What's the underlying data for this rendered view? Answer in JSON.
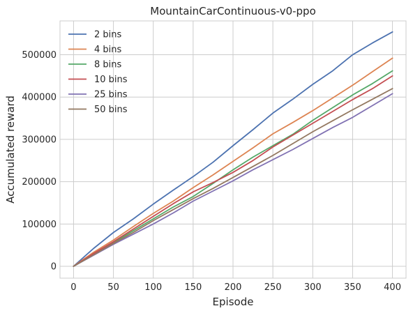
{
  "chart_data": {
    "type": "line",
    "title": "MountainCarContinuous-v0-ppo",
    "xlabel": "Episode",
    "ylabel": "Accumulated reward",
    "xlim": [
      -17,
      417
    ],
    "ylim": [
      -28000,
      580000
    ],
    "xticks": [
      0,
      50,
      100,
      150,
      200,
      250,
      300,
      350,
      400
    ],
    "yticks": [
      0,
      100000,
      200000,
      300000,
      400000,
      500000
    ],
    "grid": true,
    "legend_position": "top-left",
    "series": [
      {
        "name": "2 bins",
        "color": "#4c72b0",
        "x": [
          0,
          25,
          50,
          75,
          100,
          125,
          150,
          175,
          200,
          225,
          250,
          275,
          300,
          325,
          350,
          375,
          400
        ],
        "y": [
          0,
          42000,
          80000,
          112000,
          147000,
          180000,
          212000,
          246000,
          285000,
          323000,
          362000,
          395000,
          430000,
          462000,
          500000,
          528000,
          554000
        ]
      },
      {
        "name": "4 bins",
        "color": "#dd8452",
        "x": [
          0,
          25,
          50,
          75,
          100,
          125,
          150,
          175,
          200,
          225,
          250,
          275,
          300,
          325,
          350,
          375,
          400
        ],
        "y": [
          0,
          33000,
          62000,
          94000,
          125000,
          154000,
          186000,
          216000,
          248000,
          280000,
          313000,
          340000,
          368000,
          398000,
          428000,
          460000,
          492000
        ]
      },
      {
        "name": "8 bins",
        "color": "#55a868",
        "x": [
          0,
          25,
          50,
          75,
          100,
          125,
          150,
          175,
          200,
          225,
          250,
          275,
          300,
          325,
          350,
          375,
          400
        ],
        "y": [
          0,
          28000,
          56000,
          84000,
          112000,
          140000,
          165000,
          196000,
          228000,
          258000,
          285000,
          312000,
          345000,
          375000,
          405000,
          432000,
          462000
        ]
      },
      {
        "name": "10 bins",
        "color": "#c44e52",
        "x": [
          0,
          25,
          50,
          75,
          100,
          125,
          150,
          175,
          200,
          225,
          250,
          275,
          300,
          325,
          350,
          375,
          400
        ],
        "y": [
          0,
          30000,
          58000,
          88000,
          118000,
          148000,
          176000,
          198000,
          222000,
          250000,
          282000,
          310000,
          338000,
          366000,
          394000,
          420000,
          450000
        ]
      },
      {
        "name": "25 bins",
        "color": "#8172b3",
        "x": [
          0,
          25,
          50,
          75,
          100,
          125,
          150,
          175,
          200,
          225,
          250,
          275,
          300,
          325,
          350,
          375,
          400
        ],
        "y": [
          0,
          26000,
          52000,
          76000,
          100000,
          126000,
          154000,
          178000,
          202000,
          228000,
          252000,
          276000,
          302000,
          328000,
          352000,
          380000,
          408000
        ]
      },
      {
        "name": "50 bins",
        "color": "#937860",
        "x": [
          0,
          25,
          50,
          75,
          100,
          125,
          150,
          175,
          200,
          225,
          250,
          275,
          300,
          325,
          350,
          375,
          400
        ],
        "y": [
          0,
          27000,
          54000,
          80000,
          108000,
          134000,
          160000,
          184000,
          210000,
          236000,
          262000,
          290000,
          318000,
          344000,
          370000,
          395000,
          420000
        ]
      }
    ]
  }
}
